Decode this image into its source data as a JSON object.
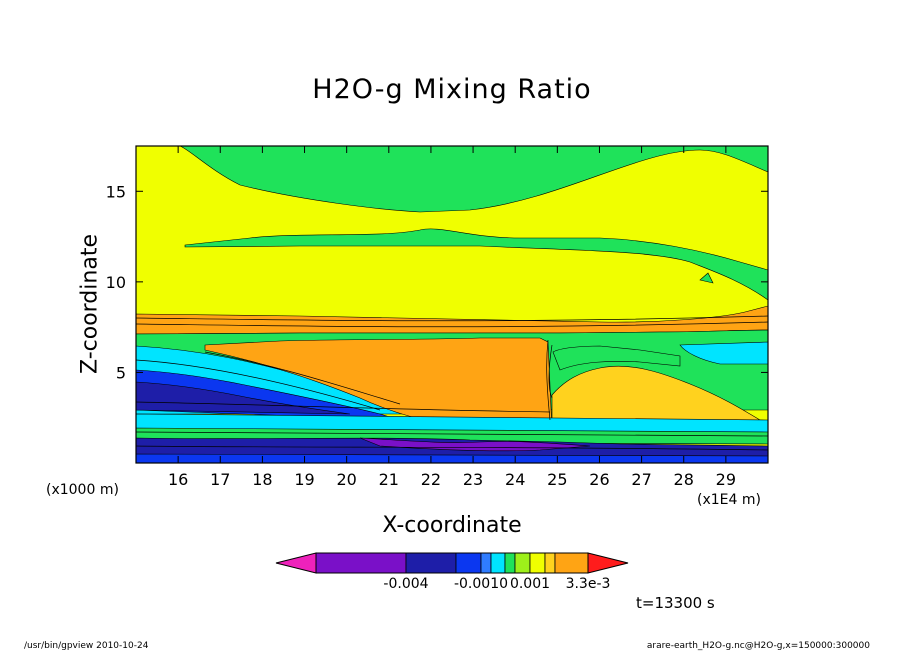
{
  "chart_data": {
    "type": "heatmap",
    "title": "H2O-g Mixing Ratio",
    "xlabel": "X-coordinate",
    "ylabel": "Z-coordinate",
    "x_unit_note": "(x1E4 m)",
    "y_unit_note": "(x1000 m)",
    "xlim": [
      15,
      30
    ],
    "ylim": [
      0,
      17.5
    ],
    "x_ticks": [
      16,
      17,
      18,
      19,
      20,
      21,
      22,
      23,
      24,
      25,
      26,
      27,
      28,
      29
    ],
    "y_ticks": [
      5,
      10,
      15
    ],
    "time_label": "t=13300 s",
    "colorbar": {
      "colors": [
        "#ee22bb",
        "#7a10c8",
        "#1e1ea8",
        "#0b37f0",
        "#2f7cff",
        "#00e4ff",
        "#1fe25a",
        "#9ef01a",
        "#f0ff00",
        "#ffd21e",
        "#ffa414",
        "#ff6214",
        "#ff1c1c"
      ],
      "tick_labels": [
        "-0.004",
        "-0.0010",
        "0.001",
        "3.3e-3"
      ]
    },
    "regions": [
      {
        "value_class": 8,
        "color": "#f0ff00",
        "description_band": "upper"
      },
      {
        "value_class": 6,
        "color": "#1fe25a",
        "description_band": "top"
      },
      {
        "value_class": 10,
        "color": "#ffa414",
        "description_band": "mid"
      },
      {
        "value_class": 5,
        "color": "#00e4ff",
        "description_band": "mid-left"
      },
      {
        "value_class": 3,
        "color": "#0b37f0",
        "description_band": "lower-left"
      },
      {
        "value_class": 2,
        "color": "#1e1ea8",
        "description_band": "surface"
      },
      {
        "value_class": 9,
        "color": "#ffd21e",
        "description_band": "right-lower"
      }
    ]
  },
  "footer": {
    "left": "/usr/bin/gpview   2010-10-24",
    "right": "arare-earth_H2O-g.nc@H2O-g,x=150000:300000"
  }
}
